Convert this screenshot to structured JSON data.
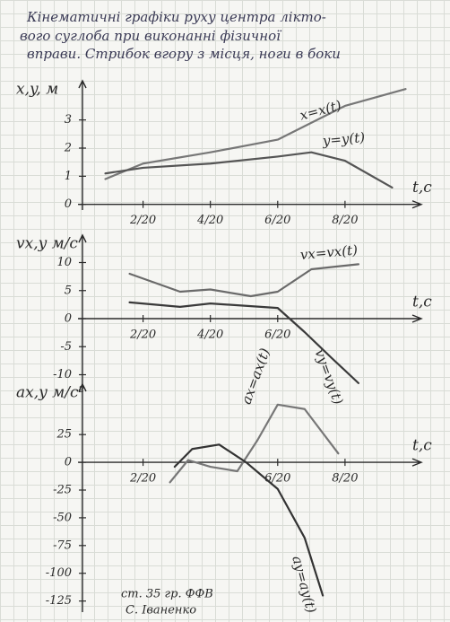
{
  "header": {
    "title": [
      "Кінематичні графіки руху центра лікто-",
      "вого суглоба при виконанні фізичної",
      "вправи. Стрибок вгору з місця, ноги в боки"
    ]
  },
  "footer": {
    "lines": [
      "ст. 35 гр. ФФВ",
      "С. Іваненко"
    ]
  },
  "chart_data": [
    {
      "type": "line",
      "y_label": "x,y, м",
      "x_label": "t,c",
      "xlim": [
        0.01,
        0.52
      ],
      "xticks": [
        {
          "value": 0.1,
          "label": "2/20"
        },
        {
          "value": 0.2,
          "label": "4/20"
        },
        {
          "value": 0.3,
          "label": "6/20"
        },
        {
          "value": 0.4,
          "label": "8/20"
        }
      ],
      "ylim": [
        -0.2,
        4.2
      ],
      "yticks": [
        0,
        1,
        2,
        3
      ],
      "series": [
        {
          "name": "x=x(t)",
          "color": "#777777",
          "x": [
            0.044,
            0.1,
            0.2,
            0.3,
            0.4,
            0.49
          ],
          "values": [
            0.9,
            1.45,
            1.85,
            2.3,
            3.5,
            4.1
          ]
        },
        {
          "name": "y=y(t)",
          "color": "#555555",
          "x": [
            0.044,
            0.1,
            0.2,
            0.3,
            0.35,
            0.4,
            0.47
          ],
          "values": [
            1.1,
            1.3,
            1.45,
            1.7,
            1.85,
            1.55,
            0.6
          ]
        }
      ]
    },
    {
      "type": "line",
      "y_label": "vx,y м/с",
      "x_label": "t,c",
      "xlim": [
        0.01,
        0.52
      ],
      "xticks": [
        {
          "value": 0.1,
          "label": "2/20"
        },
        {
          "value": 0.2,
          "label": "4/20"
        },
        {
          "value": 0.3,
          "label": "6/20"
        }
      ],
      "ylim": [
        -12,
        12
      ],
      "yticks": [
        10,
        5,
        0,
        -5,
        -10
      ],
      "series": [
        {
          "name": "vx=vx(t)",
          "color": "#6a6a6a",
          "x": [
            0.08,
            0.155,
            0.2,
            0.26,
            0.3,
            0.35,
            0.42
          ],
          "values": [
            8,
            4.8,
            5.2,
            4,
            4.8,
            8.8,
            9.7
          ]
        },
        {
          "name": "vy=vy(t)",
          "color": "#3a3a3a",
          "x": [
            0.08,
            0.155,
            0.2,
            0.3,
            0.34,
            0.38,
            0.42
          ],
          "values": [
            2.9,
            2.1,
            2.7,
            1.9,
            -2.4,
            -7,
            -11.5
          ]
        }
      ]
    },
    {
      "type": "line",
      "y_label": "ax,y м/с²",
      "x_label": "t,c",
      "xlim": [
        0.01,
        0.52
      ],
      "xticks": [
        {
          "value": 0.1,
          "label": "2/20"
        },
        {
          "value": 0.3,
          "label": "6/20"
        },
        {
          "value": 0.4,
          "label": "8/20"
        }
      ],
      "ylim": [
        -135,
        85
      ],
      "yticks": [
        25,
        0,
        -25,
        -50,
        -75,
        -100,
        -125
      ],
      "series": [
        {
          "name": "ax=ax(t)",
          "color": "#777777",
          "x": [
            0.14,
            0.167,
            0.2,
            0.24,
            0.27,
            0.3,
            0.34,
            0.39
          ],
          "values": [
            -18,
            2,
            -4,
            -8,
            20,
            52,
            48,
            8
          ]
        },
        {
          "name": "ay=ay(t)",
          "color": "#333333",
          "x": [
            0.147,
            0.173,
            0.213,
            0.253,
            0.3,
            0.34,
            0.367
          ],
          "values": [
            -4,
            12,
            16,
            0,
            -24,
            -68,
            -120
          ]
        }
      ]
    }
  ]
}
